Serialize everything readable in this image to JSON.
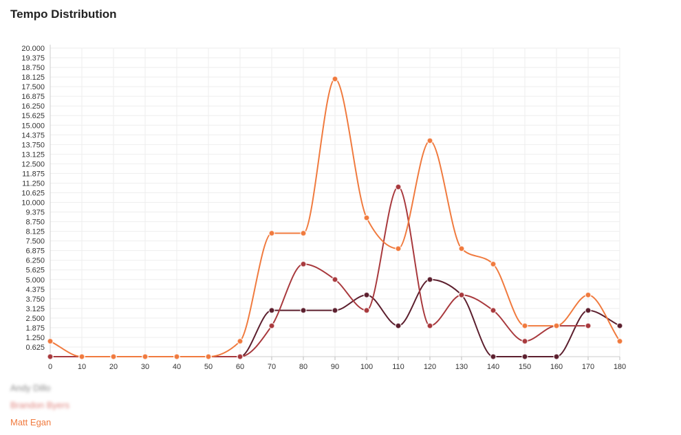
{
  "chart_data": {
    "type": "line",
    "title": "Tempo Distribution",
    "xlabel": "",
    "ylabel": "",
    "x": [
      0,
      10,
      20,
      30,
      40,
      50,
      60,
      70,
      80,
      90,
      100,
      110,
      120,
      130,
      140,
      150,
      160,
      170,
      180
    ],
    "xlim": [
      0,
      180
    ],
    "ylim": [
      0,
      20
    ],
    "y_ticks": [
      "0.625",
      "1.250",
      "1.875",
      "2.500",
      "3.125",
      "3.750",
      "4.375",
      "5.000",
      "5.625",
      "6.250",
      "6.875",
      "7.500",
      "8.125",
      "8.750",
      "9.375",
      "10.000",
      "10.625",
      "11.250",
      "11.875",
      "12.500",
      "13.125",
      "13.750",
      "14.375",
      "15.000",
      "15.625",
      "16.250",
      "16.875",
      "17.500",
      "18.125",
      "18.750",
      "19.375",
      "20.000"
    ],
    "x_ticks": [
      "0",
      "10",
      "20",
      "30",
      "40",
      "50",
      "60",
      "70",
      "80",
      "90",
      "100",
      "110",
      "120",
      "130",
      "140",
      "150",
      "160",
      "170",
      "180"
    ],
    "grid": true,
    "legend_position": "bottom-left",
    "series": [
      {
        "name": "Andy Dillo",
        "color": "#5c1f2e",
        "blurred": true,
        "values": [
          0,
          0,
          0,
          0,
          0,
          0,
          0,
          3,
          3,
          3,
          4,
          2,
          5,
          4,
          0,
          0,
          0,
          3,
          2
        ]
      },
      {
        "name": "Brandon Byers",
        "color": "#a8393d",
        "blurred": true,
        "values": [
          0,
          0,
          0,
          0,
          0,
          0,
          0,
          2,
          6,
          5,
          3,
          11,
          2,
          4,
          3,
          1,
          2,
          2,
          null
        ]
      },
      {
        "name": "Matt Egan",
        "color": "#f07a3e",
        "blurred": false,
        "values": [
          1,
          0,
          0,
          0,
          0,
          0,
          1,
          8,
          8,
          18,
          9,
          7,
          14,
          7,
          6,
          2,
          2,
          4,
          1
        ]
      }
    ]
  }
}
